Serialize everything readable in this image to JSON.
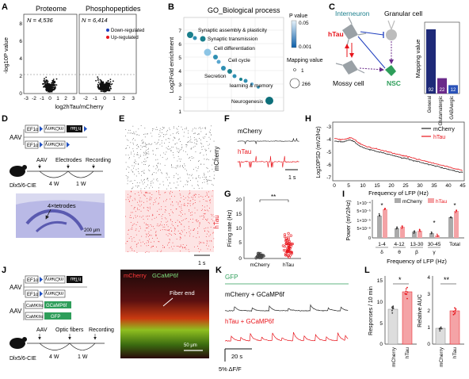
{
  "colors": {
    "mcherry": "#222222",
    "htau": "#e8141b",
    "down": "#1f3fbf",
    "up": "#e8141b",
    "teal": "#1a7f8c",
    "navy": "#1e2a78",
    "purple": "#6a2a8a",
    "green": "#2e9e5a",
    "hist": "#7a3aa0",
    "brainbg": "#b9b9e6"
  },
  "panels": {
    "A": "A",
    "B": "B",
    "C": "C",
    "D": "D",
    "E": "E",
    "F": "F",
    "G": "G",
    "H": "H",
    "I": "I",
    "J": "J",
    "K": "K",
    "L": "L"
  },
  "A": {
    "title_left": "Proteome",
    "title_right": "Phosphopeptides",
    "n_left": "N = 4,536",
    "n_right": "N = 6,414",
    "legend_down": "Down-regulated",
    "legend_up": "Up-regulated",
    "ylabel": "-log10P value",
    "xlabel": "log2hTau/mCherry",
    "y_ticks": [
      "8",
      "6",
      "4",
      "2",
      "0"
    ],
    "x_ticks_left": [
      "-3",
      "-2",
      "-1",
      "0",
      "1",
      "2",
      "3"
    ],
    "x_ticks_right": [
      "-2",
      "-1",
      "0",
      "1",
      "2",
      "3"
    ]
  },
  "B": {
    "title": "GO_Biological process",
    "ylabel": "Log2Fold enrichment",
    "y_ticks": [
      "7",
      "6",
      "5",
      "4",
      "3",
      "2",
      "1"
    ],
    "terms": [
      "Synaptic assembly & plasticity",
      "Synaptic transmission",
      "Cell differentiation",
      "Cell cycle",
      "Secretion",
      "learning & memory",
      "Neurogenesis"
    ],
    "legend_p_title": "P value",
    "legend_p_hi": "0.05",
    "legend_p_lo": "0.001",
    "legend_size_title": "Mapping value",
    "legend_size_lo": "1",
    "legend_size_hi": "266"
  },
  "C": {
    "interneuron": "Interneuron",
    "granular": "Granular cell",
    "mossy": "Mossy cell",
    "nsc": "NSC",
    "htau": "hTau",
    "ylabel": "Mapping value",
    "bars": [
      {
        "label": "General",
        "value": "92"
      },
      {
        "label": "Glutamatergic",
        "value": "22"
      },
      {
        "label": "GABAergic",
        "value": "12"
      }
    ]
  },
  "D": {
    "aav": "AAV",
    "ef1a": "EF1α",
    "mcherry_rev": "mCherry",
    "htau_rev": "hTau",
    "tl_aav": "AAV",
    "tl_electrodes": "Electrodes",
    "tl_recording": "Recording",
    "tl_4w": "4 W",
    "tl_1w": "1 W",
    "mouse_line": "Dlx5/6-CIE",
    "tetrodes": "4×tetrodes",
    "scale": "200 μm"
  },
  "E": {
    "label_top": "mCherry",
    "label_bottom": "hTau",
    "scale": "1 s"
  },
  "F": {
    "label_top": "mCherry",
    "label_bottom": "hTau",
    "scale": "1 s"
  },
  "G": {
    "ylabel": "Firing rate (Hz)",
    "y_ticks": [
      "20",
      "15",
      "10",
      "5",
      "0"
    ],
    "sig": "**",
    "x_labels": [
      "mCherry",
      "hTau"
    ]
  },
  "H": {
    "ylabel": "Log10PSD (mV2/Hz)",
    "xlabel": "Frequency of LFP (Hz)",
    "y_ticks": [
      "-3",
      "-4",
      "-5",
      "-6",
      "-7"
    ],
    "x_ticks": [
      "0",
      "5",
      "10",
      "15",
      "20",
      "25",
      "30",
      "35",
      "40",
      "45"
    ],
    "legend_mcherry": "mCherry",
    "legend_htau": "hTau"
  },
  "I": {
    "ylabel": "Power (mV2/Hz)",
    "y_ticks": [
      "1×10⁻⁴",
      "5×10⁻⁵",
      "1×10⁻⁵",
      "5×10⁻⁶",
      "0"
    ],
    "legend_mcherry": "mCherry",
    "legend_htau": "hTau",
    "groups": [
      {
        "range": "1-4",
        "band": "δ",
        "sig": "*"
      },
      {
        "range": "4-12",
        "band": "θ",
        "sig": ""
      },
      {
        "range": "13-30",
        "band": "β",
        "sig": ""
      },
      {
        "range": "30-45",
        "band": "γ",
        "sig": "*"
      },
      {
        "range": "Total",
        "band": "",
        "sig": "*"
      }
    ],
    "xlabel": "Frequency of LFP (Hz)"
  },
  "J": {
    "aav1": "AAV",
    "aav2": "AAV",
    "ef1a": "EF1α",
    "mcherry_rev": "mCherry",
    "htau_rev": "hTau",
    "camkii": "CaMKIIα",
    "gcamp": "GCaMP6f",
    "gfp": "GFP",
    "tl_aav": "AAV",
    "tl_optic": "Optic fibers",
    "tl_recording": "Recording",
    "tl_4w": "4 W",
    "tl_1w": "1 W",
    "mouse_line": "Dlx5/6-CIE",
    "micro_mcherry": "mCherry",
    "micro_gcamp": "GCaMP6f",
    "fiber_end": "Fiber end",
    "scale": "50 μm"
  },
  "K": {
    "gfp": "GFP",
    "mcherry": "mCherry + GCaMP6f",
    "htau": "hTau + GCaMP6f",
    "scale_x": "20 s",
    "scale_y": "5% ΔF/F"
  },
  "L": {
    "ylabel_left": "Responses / 10 min",
    "ylabel_right": "Relative AUC",
    "y_ticks_left": [
      "15",
      "10",
      "5",
      "0"
    ],
    "y_ticks_right": [
      "4",
      "3",
      "2",
      "1",
      "0"
    ],
    "sig_left": "*",
    "sig_right": "**",
    "x_labels": [
      "mCherry",
      "hTau"
    ]
  }
}
